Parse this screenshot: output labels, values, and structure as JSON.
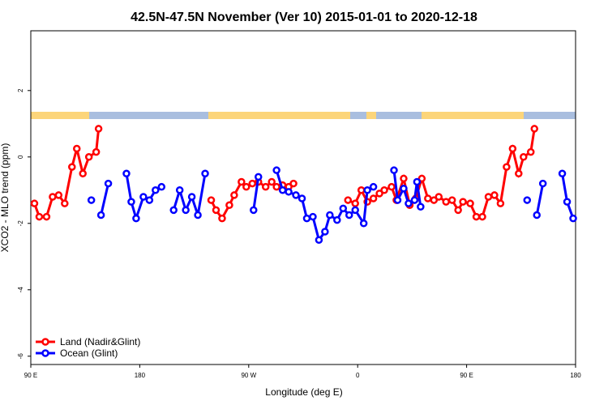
{
  "chart_data": {
    "type": "line",
    "title": "42.5N-47.5N November (Ver 10)   2015-01-01 to 2020-12-18",
    "x_label": "Longitude (deg E)",
    "y_label": "XCO2 - MLO trend (ppm)",
    "xlim": [
      90,
      540
    ],
    "ylim": [
      -6.25,
      3.8
    ],
    "xticks": [
      {
        "value": 90,
        "label": "90 E"
      },
      {
        "value": 180,
        "label": "180"
      },
      {
        "value": 270,
        "label": "90 W"
      },
      {
        "value": 360,
        "label": "0"
      },
      {
        "value": 450,
        "label": "90 E"
      },
      {
        "value": 540,
        "label": "180"
      }
    ],
    "yticks": [
      -6,
      -4,
      -2,
      0,
      2
    ],
    "legend": "bottom-left",
    "series": [
      {
        "name": "Land (Nadir&Glint)",
        "color": "#ff0000",
        "x": [
          93,
          97,
          103,
          108,
          113,
          118,
          124,
          128,
          133,
          138,
          144,
          146,
          null,
          239,
          243,
          248,
          254,
          258,
          264,
          268,
          273,
          278,
          284,
          289,
          293,
          298,
          303,
          307,
          null,
          352,
          358,
          363,
          368,
          373,
          378,
          382,
          388,
          392,
          398,
          403,
          408,
          413,
          418,
          423,
          427,
          433,
          438,
          443,
          447,
          453,
          458,
          463,
          468,
          473,
          478,
          483,
          488,
          493,
          497,
          503,
          506
        ],
        "values": [
          -1.4,
          -1.8,
          -1.8,
          -1.2,
          -1.15,
          -1.4,
          -0.3,
          0.25,
          -0.5,
          0,
          0.15,
          0.85,
          null,
          -1.3,
          -1.6,
          -1.85,
          -1.45,
          -1.15,
          -0.75,
          -0.9,
          -0.8,
          -0.75,
          -0.9,
          -0.75,
          -0.9,
          -0.85,
          -0.9,
          -0.8,
          null,
          -1.3,
          -1.4,
          -1.0,
          -1.35,
          -1.25,
          -1.1,
          -1.0,
          -0.9,
          -1.3,
          -0.65,
          -1.45,
          -1.25,
          -0.65,
          -1.25,
          -1.3,
          -1.2,
          -1.35,
          -1.3,
          -1.6,
          -1.35,
          -1.4,
          -1.8,
          -1.8,
          -1.2,
          -1.15,
          -1.4,
          -0.3,
          0.25,
          -0.5,
          0,
          0.15,
          0.85
        ]
      },
      {
        "name": "Ocean (Glint)",
        "color": "#0000ff",
        "x": [
          140,
          null,
          148,
          154,
          null,
          169,
          173,
          177,
          183,
          188,
          193,
          198,
          null,
          208,
          213,
          218,
          223,
          228,
          234,
          null,
          274,
          278,
          null,
          293,
          298,
          303,
          309,
          314,
          318,
          323,
          328,
          333,
          337,
          343,
          348,
          353,
          358,
          365,
          368,
          373,
          null,
          390,
          393,
          398,
          402,
          407,
          409,
          412,
          null,
          500,
          null,
          508,
          513,
          null,
          529,
          533,
          538
        ],
        "values": [
          -1.3,
          null,
          -1.75,
          -0.8,
          null,
          -0.5,
          -1.35,
          -1.85,
          -1.2,
          -1.3,
          -1.0,
          -0.9,
          null,
          -1.6,
          -1.0,
          -1.6,
          -1.2,
          -1.75,
          -0.5,
          null,
          -1.6,
          -0.6,
          null,
          -0.4,
          -1.0,
          -1.05,
          -1.15,
          -1.25,
          -1.85,
          -1.8,
          -2.5,
          -2.25,
          -1.75,
          -1.9,
          -1.55,
          -1.75,
          -1.6,
          -2.0,
          -1.0,
          -0.9,
          null,
          -0.4,
          -1.3,
          -0.95,
          -1.4,
          -1.3,
          -0.75,
          -1.5,
          null,
          -1.3,
          null,
          -1.75,
          -0.8,
          null,
          -0.5,
          -1.35,
          -1.85
        ]
      }
    ]
  }
}
